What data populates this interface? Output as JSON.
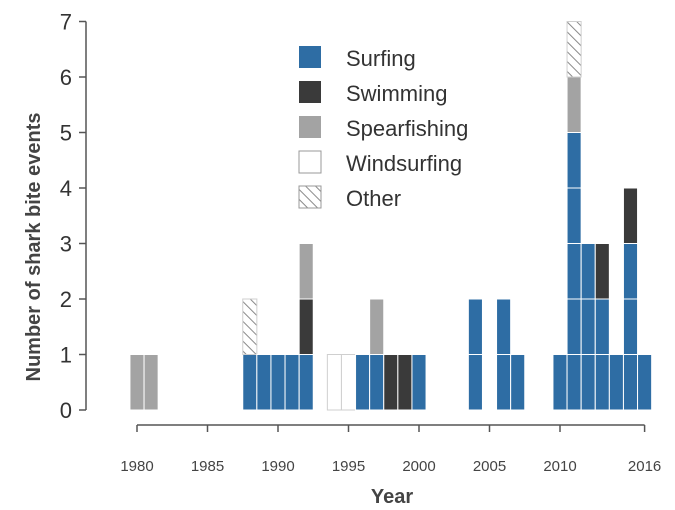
{
  "chart_data": {
    "type": "bar",
    "stacked": true,
    "xlabel": "Year",
    "ylabel": "Number of shark bite events",
    "ylim": [
      0,
      7
    ],
    "yticks": [
      0,
      1,
      2,
      3,
      4,
      5,
      6,
      7
    ],
    "xticks": [
      1980,
      1985,
      1990,
      1995,
      2000,
      2005,
      2010,
      2016
    ],
    "xlim": [
      1979,
      2017
    ],
    "legend_position": "top-center",
    "colors": {
      "Surfing": "#2e6da4",
      "Swimming": "#3a3a3a",
      "Spearfishing": "#a3a3a3",
      "Windsurfing": "#ffffff",
      "Other": "hatch"
    },
    "series": [
      {
        "name": "Surfing"
      },
      {
        "name": "Swimming"
      },
      {
        "name": "Spearfishing"
      },
      {
        "name": "Windsurfing"
      },
      {
        "name": "Other"
      }
    ],
    "bars": [
      {
        "year": 1980,
        "segments": [
          "Spearfishing"
        ]
      },
      {
        "year": 1981,
        "segments": [
          "Spearfishing"
        ]
      },
      {
        "year": 1988,
        "segments": [
          "Surfing",
          "Other"
        ]
      },
      {
        "year": 1989,
        "segments": [
          "Surfing"
        ]
      },
      {
        "year": 1990,
        "segments": [
          "Surfing"
        ]
      },
      {
        "year": 1991,
        "segments": [
          "Surfing"
        ]
      },
      {
        "year": 1992,
        "segments": [
          "Surfing",
          "Swimming",
          "Spearfishing"
        ]
      },
      {
        "year": 1994,
        "segments": [
          "Windsurfing"
        ]
      },
      {
        "year": 1995,
        "segments": [
          "Windsurfing"
        ]
      },
      {
        "year": 1996,
        "segments": [
          "Surfing"
        ]
      },
      {
        "year": 1997,
        "segments": [
          "Surfing",
          "Spearfishing"
        ]
      },
      {
        "year": 1998,
        "segments": [
          "Swimming"
        ]
      },
      {
        "year": 1999,
        "segments": [
          "Swimming"
        ]
      },
      {
        "year": 2000,
        "segments": [
          "Surfing"
        ]
      },
      {
        "year": 2004,
        "segments": [
          "Surfing",
          "Surfing"
        ]
      },
      {
        "year": 2006,
        "segments": [
          "Surfing",
          "Surfing"
        ]
      },
      {
        "year": 2007,
        "segments": [
          "Surfing"
        ]
      },
      {
        "year": 2010,
        "segments": [
          "Surfing"
        ]
      },
      {
        "year": 2011,
        "segments": [
          "Surfing",
          "Surfing",
          "Surfing",
          "Surfing",
          "Surfing",
          "Spearfishing",
          "Other"
        ]
      },
      {
        "year": 2012,
        "segments": [
          "Surfing",
          "Surfing",
          "Surfing"
        ]
      },
      {
        "year": 2013,
        "segments": [
          "Surfing",
          "Surfing",
          "Swimming"
        ]
      },
      {
        "year": 2014,
        "segments": [
          "Surfing"
        ]
      },
      {
        "year": 2015,
        "segments": [
          "Surfing",
          "Surfing",
          "Surfing",
          "Swimming"
        ]
      },
      {
        "year": 2016,
        "segments": [
          "Surfing"
        ]
      }
    ]
  }
}
